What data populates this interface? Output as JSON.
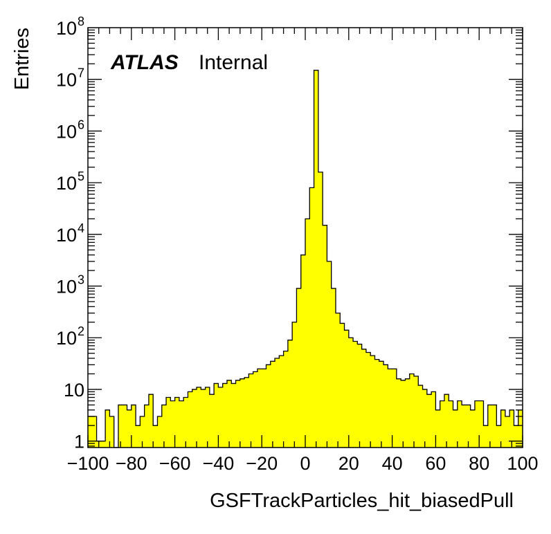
{
  "chart_data": {
    "type": "bar",
    "histogram": true,
    "xlabel": "GSFTrackParticles_hit_biasedPull",
    "ylabel": "Entries",
    "xlim": [
      -100,
      100
    ],
    "ylim": [
      0.75,
      100000000
    ],
    "y_scale": "log",
    "fill_color": "#ffff00",
    "edge_color": "#000000",
    "annotation": {
      "bold_italic": "ATLAS",
      "text": "Internal"
    },
    "x_ticks": [
      "−100",
      "−80",
      "−60",
      "−40",
      "−20",
      "0",
      "20",
      "40",
      "60",
      "80",
      "100"
    ],
    "x_tick_values": [
      -100,
      -80,
      -60,
      -40,
      -20,
      0,
      20,
      40,
      60,
      80,
      100
    ],
    "y_ticks": [
      {
        "value": 1,
        "base": "1",
        "exp": ""
      },
      {
        "value": 10,
        "base": "10",
        "exp": ""
      },
      {
        "value": 100,
        "base": "10",
        "exp": "2"
      },
      {
        "value": 1000,
        "base": "10",
        "exp": "3"
      },
      {
        "value": 10000,
        "base": "10",
        "exp": "4"
      },
      {
        "value": 100000,
        "base": "10",
        "exp": "5"
      },
      {
        "value": 1000000,
        "base": "10",
        "exp": "6"
      },
      {
        "value": 10000000,
        "base": "10",
        "exp": "7"
      },
      {
        "value": 100000000,
        "base": "10",
        "exp": "8"
      }
    ],
    "bin_edges_start": -100,
    "bin_width": 2,
    "values": [
      3,
      3,
      1,
      1,
      4,
      3,
      0,
      5,
      5,
      4,
      5,
      2,
      3,
      5,
      8,
      2,
      3,
      5,
      7,
      6,
      7,
      6,
      7,
      9,
      10,
      11,
      10,
      11,
      8,
      13,
      11,
      13,
      15,
      13,
      15,
      16,
      17,
      20,
      22,
      25,
      25,
      30,
      35,
      40,
      45,
      55,
      90,
      200,
      900,
      4000,
      20000,
      80000,
      15000000,
      160000,
      15000,
      3000,
      900,
      300,
      190,
      140,
      100,
      85,
      75,
      60,
      52,
      45,
      38,
      35,
      30,
      25,
      25,
      16,
      15,
      16,
      20,
      18,
      12,
      10,
      8,
      9,
      4,
      6,
      8,
      6,
      4,
      6,
      5,
      5,
      4,
      6,
      6,
      2,
      5,
      5,
      2,
      4,
      3,
      4,
      2,
      4
    ]
  }
}
